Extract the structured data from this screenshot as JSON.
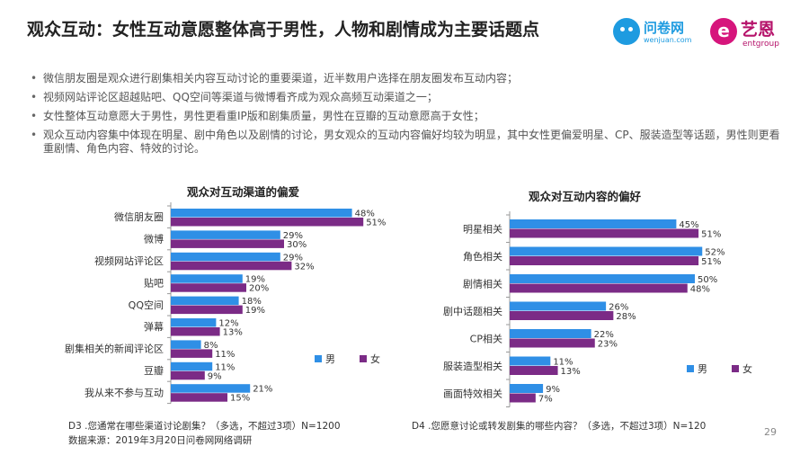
{
  "header": {
    "title": "观众互动：女性互动意愿整体高于男性，人物和剧情成为主要话题点",
    "logo_wenjuan": {
      "name": "问卷网",
      "sub": "wenjuan.com"
    },
    "logo_ent": {
      "mark": "e",
      "name": "艺恩",
      "sub": "entgroup"
    }
  },
  "bullets": [
    "微信朋友圈是观众进行剧集相关内容互动讨论的重要渠道，近半数用户选择在朋友圈发布互动内容；",
    "视频网站评论区超越贴吧、QQ空间等渠道与微博看齐成为观众高频互动渠道之一；",
    "女性整体互动意愿大于男性，男性更看重IP版和剧集质量，男性在豆瓣的互动意愿高于女性；",
    "观众互动内容集中体现在明星、剧中角色以及剧情的讨论，男女观众的互动内容偏好均较为明显，其中女性更偏爱明星、CP、服装造型等话题，男性则更看重剧情、角色内容、特效的讨论。"
  ],
  "chart_data": [
    {
      "type": "bar",
      "orientation": "horizontal",
      "title": "观众对互动渠道的偏爱",
      "categories": [
        "微信朋友圈",
        "微博",
        "视频网站评论区",
        "贴吧",
        "QQ空间",
        "弹幕",
        "剧集相关的新闻评论区",
        "豆瓣",
        "我从来不参与互动"
      ],
      "series": [
        {
          "name": "男",
          "color": "#2f8fe6",
          "values": [
            48,
            29,
            29,
            19,
            18,
            12,
            8,
            11,
            21
          ]
        },
        {
          "name": "女",
          "color": "#7b2b86",
          "values": [
            51,
            30,
            32,
            20,
            19,
            13,
            11,
            9,
            15
          ]
        }
      ],
      "value_suffix": "%",
      "legend": "bottom-right",
      "footnote": "D3 .您通常在哪些渠道讨论剧集？（多选，不超过3项）N=1200"
    },
    {
      "type": "bar",
      "orientation": "horizontal",
      "title": "观众对互动内容的偏好",
      "categories": [
        "明星相关",
        "角色相关",
        "剧情相关",
        "剧中话题相关",
        "CP相关",
        "服装造型相关",
        "画面特效相关"
      ],
      "series": [
        {
          "name": "男",
          "color": "#2f8fe6",
          "values": [
            45,
            52,
            50,
            26,
            22,
            11,
            9
          ]
        },
        {
          "name": "女",
          "color": "#7b2b86",
          "values": [
            51,
            51,
            48,
            28,
            23,
            13,
            7
          ]
        }
      ],
      "value_suffix": "%",
      "legend": "bottom-right",
      "footnote": "D4 .您愿意讨论或转发剧集的哪些内容？（多选，不超过3项）N=120"
    }
  ],
  "footer": {
    "source": "数据来源：2019年3月20日问卷网网络调研",
    "page": "29"
  }
}
